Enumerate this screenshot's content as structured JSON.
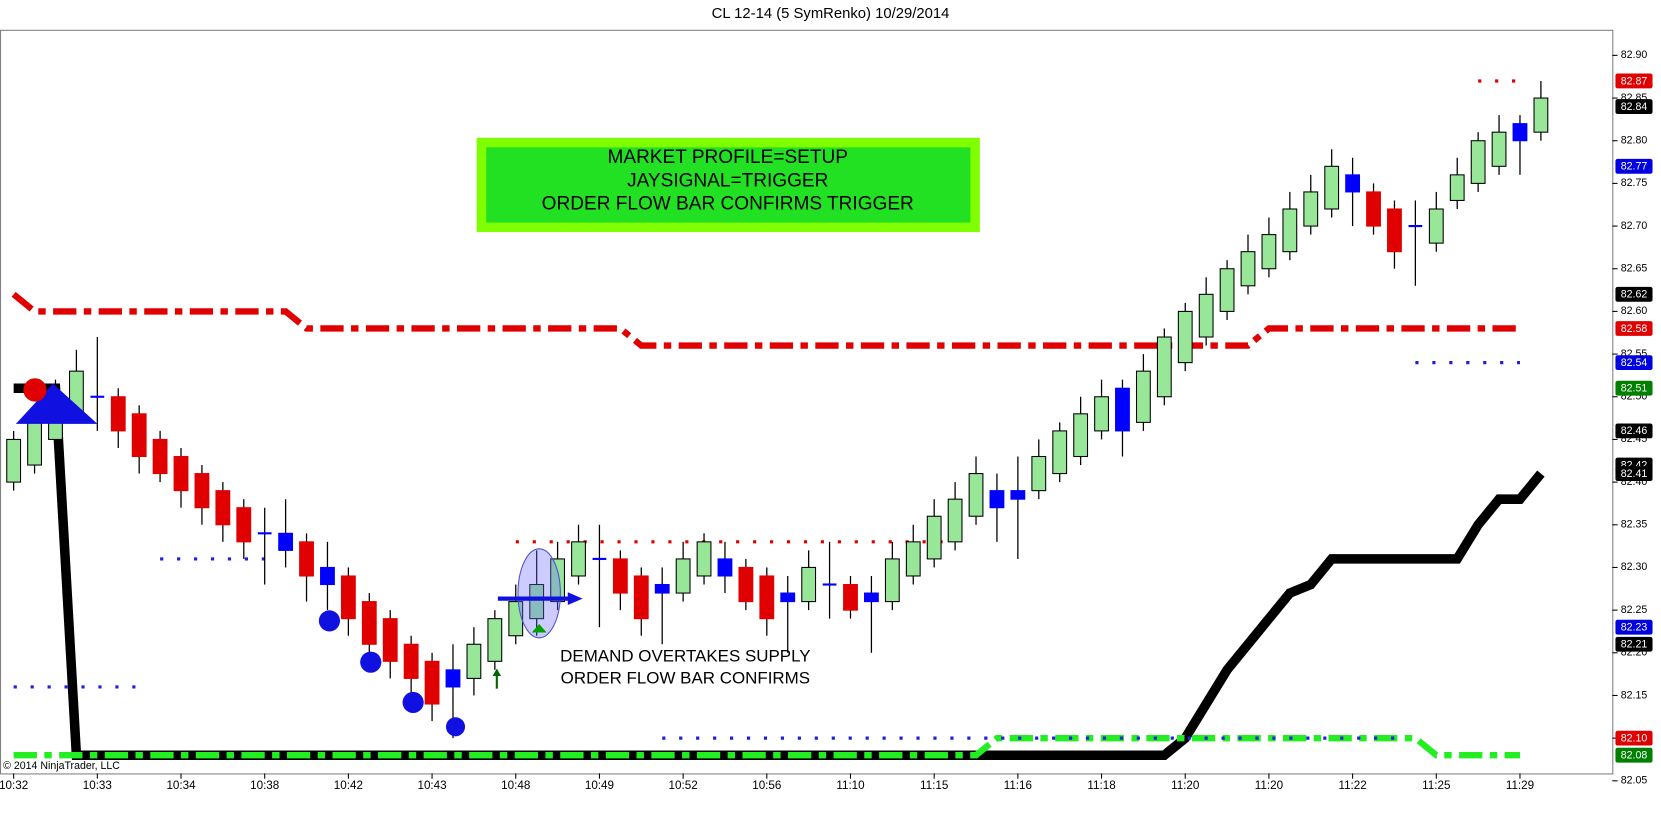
{
  "chart_data": {
    "type": "candlestick",
    "title": "CL 12-14 (5 SymRenko)  10/29/2014",
    "copyright": "© 2014 NinjaTrader, LLC",
    "categories": [
      "10:32",
      null,
      null,
      null,
      "10:33",
      null,
      null,
      null,
      "10:34",
      null,
      null,
      null,
      "10:38",
      null,
      null,
      null,
      "10:42",
      null,
      null,
      null,
      "10:43",
      null,
      null,
      null,
      "10:48",
      null,
      null,
      null,
      "10:49",
      null,
      null,
      null,
      "10:52",
      null,
      null,
      null,
      "10:56",
      null,
      null,
      null,
      "11:10",
      null,
      null,
      null,
      "11:15",
      null,
      null,
      null,
      "11:16",
      null,
      null,
      null,
      "11:18",
      null,
      null,
      null,
      "11:20",
      null,
      null,
      null,
      "11:20",
      null,
      null,
      null,
      "11:22",
      null,
      null,
      null,
      "11:25",
      null,
      null,
      null,
      "11:29",
      null
    ],
    "open": [
      82.4,
      82.42,
      82.45,
      82.48,
      82.5,
      82.5,
      82.48,
      82.45,
      82.43,
      82.41,
      82.39,
      82.37,
      82.34,
      82.34,
      82.33,
      82.3,
      82.29,
      82.26,
      82.24,
      82.21,
      82.19,
      82.16,
      82.17,
      82.19,
      82.22,
      82.24,
      82.26,
      82.29,
      82.31,
      82.31,
      82.29,
      82.27,
      82.27,
      82.29,
      82.31,
      82.3,
      82.29,
      82.26,
      82.26,
      82.28,
      82.28,
      82.26,
      82.26,
      82.29,
      82.31,
      82.33,
      82.36,
      82.37,
      82.38,
      82.39,
      82.41,
      82.43,
      82.46,
      82.46,
      82.47,
      82.5,
      82.54,
      82.57,
      82.6,
      82.63,
      82.65,
      82.67,
      82.7,
      82.72,
      82.76,
      82.74,
      82.72,
      82.7,
      82.68,
      82.73,
      82.75,
      82.77,
      82.8,
      82.81
    ],
    "high": [
      82.46,
      82.49,
      82.52,
      82.555,
      82.57,
      82.51,
      82.49,
      82.46,
      82.44,
      82.42,
      82.4,
      82.38,
      82.37,
      82.38,
      82.34,
      82.33,
      82.3,
      82.27,
      82.25,
      82.22,
      82.2,
      82.21,
      82.23,
      82.25,
      82.28,
      82.32,
      82.33,
      82.35,
      82.35,
      82.32,
      82.3,
      82.3,
      82.33,
      82.34,
      82.33,
      82.31,
      82.3,
      82.29,
      82.32,
      82.33,
      82.29,
      82.29,
      82.33,
      82.35,
      82.38,
      82.4,
      82.43,
      82.41,
      82.43,
      82.45,
      82.47,
      82.5,
      82.52,
      82.52,
      82.55,
      82.58,
      82.61,
      82.64,
      82.66,
      82.69,
      82.71,
      82.74,
      82.76,
      82.79,
      82.78,
      82.75,
      82.73,
      82.73,
      82.74,
      82.78,
      82.81,
      82.83,
      82.83,
      82.87
    ],
    "low": [
      82.39,
      82.41,
      82.44,
      82.47,
      82.46,
      82.44,
      82.41,
      82.4,
      82.37,
      82.35,
      82.33,
      82.31,
      82.28,
      82.3,
      82.26,
      82.25,
      82.22,
      82.2,
      82.17,
      82.15,
      82.12,
      82.1,
      82.15,
      82.18,
      82.21,
      82.22,
      82.25,
      82.28,
      82.23,
      82.25,
      82.22,
      82.21,
      82.26,
      82.28,
      82.27,
      82.25,
      82.22,
      82.2,
      82.25,
      82.24,
      82.24,
      82.2,
      82.25,
      82.28,
      82.3,
      82.32,
      82.35,
      82.33,
      82.31,
      82.38,
      82.4,
      82.42,
      82.45,
      82.43,
      82.46,
      82.49,
      82.53,
      82.56,
      82.59,
      82.62,
      82.64,
      82.66,
      82.69,
      82.71,
      82.7,
      82.69,
      82.65,
      82.63,
      82.67,
      82.72,
      82.74,
      82.76,
      82.76,
      82.8
    ],
    "close": [
      82.45,
      82.47,
      82.5,
      82.53,
      82.5,
      82.46,
      82.43,
      82.41,
      82.39,
      82.37,
      82.35,
      82.33,
      82.34,
      82.32,
      82.29,
      82.28,
      82.24,
      82.21,
      82.19,
      82.17,
      82.14,
      82.18,
      82.21,
      82.24,
      82.26,
      82.28,
      82.31,
      82.33,
      82.31,
      82.27,
      82.24,
      82.28,
      82.31,
      82.33,
      82.29,
      82.26,
      82.24,
      82.27,
      82.3,
      82.28,
      82.25,
      82.27,
      82.31,
      82.33,
      82.36,
      82.38,
      82.41,
      82.39,
      82.39,
      82.43,
      82.46,
      82.48,
      82.5,
      82.51,
      82.53,
      82.57,
      82.6,
      82.62,
      82.65,
      82.67,
      82.69,
      82.72,
      82.74,
      82.77,
      82.74,
      82.7,
      82.67,
      82.7,
      82.72,
      82.76,
      82.8,
      82.81,
      82.82,
      82.85
    ],
    "order_flow_bars": [
      4,
      12,
      13,
      15,
      21,
      28,
      31,
      34,
      37,
      39,
      41,
      47,
      48,
      53,
      64,
      67,
      72
    ],
    "colors": {
      "up": "#98e698",
      "down": "#e00000",
      "order_flow": "#0000ff"
    },
    "ylim": [
      82.05,
      82.93
    ],
    "yticks": [
      82.05,
      {
        "value": 82.1,
        "label": "82.10"
      },
      82.15,
      {
        "value": 82.2,
        "label": "82.20"
      },
      82.25,
      {
        "value": 82.3,
        "label": "82.30"
      },
      82.35,
      {
        "value": 82.4,
        "label": "82.40"
      },
      82.45,
      {
        "value": 82.5,
        "label": "82.50"
      },
      82.55,
      {
        "value": 82.6,
        "label": "82.60"
      },
      82.65,
      {
        "value": 82.7,
        "label": "82.70"
      },
      82.75,
      {
        "value": 82.8,
        "label": "82.80"
      },
      82.85,
      {
        "value": 82.9,
        "label": "82.90"
      }
    ],
    "lines": [
      {
        "color": "#e00000",
        "style": "dashdot",
        "values": [
          82.62,
          82.6,
          82.6,
          82.6,
          82.6,
          82.6,
          82.6,
          82.6,
          82.6,
          82.6,
          82.6,
          82.6,
          82.6,
          82.6,
          82.58,
          82.58,
          82.58,
          82.58,
          82.58,
          82.58,
          82.58,
          82.58,
          82.58,
          82.58,
          82.58,
          82.58,
          82.58,
          82.58,
          82.58,
          82.58,
          82.56,
          82.56,
          82.56,
          82.56,
          82.56,
          82.56,
          82.56,
          82.56,
          82.56,
          82.56,
          82.56,
          82.56,
          82.56,
          82.56,
          82.56,
          82.56,
          82.56,
          82.56,
          82.56,
          82.56,
          82.56,
          82.56,
          82.56,
          82.56,
          82.56,
          82.56,
          82.56,
          82.56,
          82.56,
          82.56,
          82.58,
          82.58,
          82.58,
          82.58,
          82.58,
          82.58,
          82.58,
          82.58,
          82.58,
          82.58,
          82.58,
          82.58,
          82.58,
          null
        ]
      },
      {
        "color": "#000000",
        "style": "solid",
        "values": [
          82.51,
          82.51,
          82.51,
          82.08,
          82.08,
          82.08,
          82.08,
          82.08,
          82.08,
          82.08,
          82.08,
          82.08,
          82.08,
          82.08,
          82.08,
          82.08,
          82.08,
          82.08,
          82.08,
          82.08,
          82.08,
          82.08,
          82.08,
          82.08,
          82.08,
          82.08,
          82.08,
          82.08,
          82.08,
          82.08,
          82.08,
          82.08,
          82.08,
          82.08,
          82.08,
          82.08,
          82.08,
          82.08,
          82.08,
          82.08,
          82.08,
          82.08,
          82.08,
          82.08,
          82.08,
          82.08,
          82.08,
          82.08,
          82.08,
          82.08,
          82.08,
          82.08,
          82.08,
          82.08,
          82.08,
          82.08,
          82.1,
          82.14,
          82.18,
          82.21,
          82.24,
          82.27,
          82.28,
          82.31,
          82.31,
          82.31,
          82.31,
          82.31,
          82.31,
          82.31,
          82.35,
          82.38,
          82.38,
          82.41
        ]
      },
      {
        "color": "#22ee22",
        "style": "dashdot",
        "values": [
          82.08,
          82.08,
          82.08,
          82.08,
          82.08,
          82.08,
          82.08,
          82.08,
          82.08,
          82.08,
          82.08,
          82.08,
          82.08,
          82.08,
          82.08,
          82.08,
          82.08,
          82.08,
          82.08,
          82.08,
          82.08,
          82.08,
          82.08,
          82.08,
          82.08,
          82.08,
          82.08,
          82.08,
          82.08,
          82.08,
          82.08,
          82.08,
          82.08,
          82.08,
          82.08,
          82.08,
          82.08,
          82.08,
          82.08,
          82.08,
          82.08,
          82.08,
          82.08,
          82.08,
          82.08,
          82.08,
          82.08,
          82.1,
          82.1,
          82.1,
          82.1,
          82.1,
          82.1,
          82.1,
          82.1,
          82.1,
          82.1,
          82.1,
          82.1,
          82.1,
          82.1,
          82.1,
          82.1,
          82.1,
          82.1,
          82.1,
          82.1,
          82.1,
          82.08,
          82.08,
          82.08,
          82.08,
          82.08,
          null
        ]
      },
      {
        "color": "#1f1fe0",
        "style": "dotted",
        "values": [
          82.16,
          82.16,
          82.16,
          82.16,
          82.16,
          82.16,
          82.16,
          null,
          null,
          null,
          null,
          null,
          null,
          null,
          null,
          null,
          null,
          null,
          null,
          null,
          null,
          null,
          null,
          null,
          null,
          null,
          null,
          null,
          null,
          null,
          null,
          null,
          null,
          null,
          null,
          null,
          null,
          null,
          null,
          null,
          null,
          null,
          null,
          null,
          null,
          null,
          null,
          null,
          null,
          null,
          null,
          null,
          null,
          null,
          null,
          null,
          null,
          null,
          null,
          null,
          null,
          null,
          null,
          null,
          null,
          null,
          null,
          null,
          null,
          null,
          null,
          null,
          null,
          null
        ]
      },
      {
        "color": "#1f1fe0",
        "style": "dotted",
        "values": [
          null,
          null,
          null,
          null,
          null,
          null,
          null,
          82.31,
          82.31,
          82.31,
          82.31,
          82.31,
          82.31,
          null,
          null,
          null,
          null,
          null,
          null,
          null,
          null,
          null,
          null,
          null,
          null,
          null,
          null,
          null,
          null,
          null,
          null,
          null,
          null,
          null,
          null,
          null,
          null,
          null,
          null,
          null,
          null,
          null,
          null,
          null,
          null,
          null,
          null,
          null,
          null,
          null,
          null,
          null,
          null,
          null,
          null,
          null,
          null,
          null,
          null,
          null,
          null,
          null,
          null,
          null,
          null,
          null,
          null,
          null,
          null,
          null,
          null,
          null,
          null,
          null
        ]
      },
      {
        "color": "#e00000",
        "style": "dotted",
        "values": [
          null,
          null,
          null,
          null,
          null,
          null,
          null,
          null,
          null,
          null,
          null,
          null,
          null,
          null,
          null,
          null,
          null,
          null,
          null,
          null,
          null,
          null,
          null,
          null,
          82.33,
          82.33,
          82.33,
          82.33,
          82.33,
          82.33,
          82.33,
          82.33,
          82.33,
          82.33,
          82.33,
          82.33,
          82.33,
          82.33,
          82.33,
          82.33,
          82.33,
          82.33,
          82.33,
          82.33,
          82.33,
          82.33,
          null,
          null,
          null,
          null,
          null,
          null,
          null,
          null,
          null,
          null,
          null,
          null,
          null,
          null,
          null,
          null,
          null,
          null,
          null,
          null,
          null,
          null,
          null,
          null,
          null,
          null,
          null,
          null
        ]
      },
      {
        "color": "#1f1fe0",
        "style": "dotted",
        "values": [
          null,
          null,
          null,
          null,
          null,
          null,
          null,
          null,
          null,
          null,
          null,
          null,
          null,
          null,
          null,
          null,
          null,
          null,
          null,
          null,
          null,
          null,
          null,
          null,
          null,
          null,
          null,
          null,
          null,
          null,
          null,
          82.1,
          82.1,
          82.1,
          82.1,
          82.1,
          82.1,
          82.1,
          82.1,
          82.1,
          82.1,
          82.1,
          82.1,
          82.1,
          82.1,
          82.1,
          82.1,
          82.1,
          82.1,
          82.1,
          82.1,
          82.1,
          82.1,
          82.1,
          82.1,
          82.1,
          82.1,
          82.1,
          82.1,
          82.1,
          82.1,
          82.1,
          82.1,
          82.1,
          82.1,
          82.1,
          82.1,
          null,
          null,
          null,
          null,
          null,
          null,
          null
        ]
      },
      {
        "color": "#1f1fe0",
        "style": "dotted",
        "values": [
          null,
          null,
          null,
          null,
          null,
          null,
          null,
          null,
          null,
          null,
          null,
          null,
          null,
          null,
          null,
          null,
          null,
          null,
          null,
          null,
          null,
          null,
          null,
          null,
          null,
          null,
          null,
          null,
          null,
          null,
          null,
          null,
          null,
          null,
          null,
          null,
          null,
          null,
          null,
          null,
          null,
          null,
          null,
          null,
          null,
          null,
          null,
          null,
          null,
          null,
          null,
          null,
          null,
          null,
          null,
          null,
          null,
          null,
          null,
          null,
          null,
          null,
          null,
          null,
          null,
          null,
          null,
          82.54,
          82.54,
          82.54,
          82.54,
          82.54,
          82.54,
          null
        ]
      },
      {
        "color": "#e00000",
        "style": "dotted",
        "values": [
          null,
          null,
          null,
          null,
          null,
          null,
          null,
          null,
          null,
          null,
          null,
          null,
          null,
          null,
          null,
          null,
          null,
          null,
          null,
          null,
          null,
          null,
          null,
          null,
          null,
          null,
          null,
          null,
          null,
          null,
          null,
          null,
          null,
          null,
          null,
          null,
          null,
          null,
          null,
          null,
          null,
          null,
          null,
          null,
          null,
          null,
          null,
          null,
          null,
          null,
          null,
          null,
          null,
          null,
          null,
          null,
          null,
          null,
          null,
          null,
          null,
          null,
          null,
          null,
          null,
          null,
          null,
          null,
          null,
          null,
          82.87,
          82.87,
          82.87,
          null
        ]
      }
    ],
    "price_markers": [
      {
        "value": 82.87,
        "color": "#e00000"
      },
      {
        "value": 82.84,
        "color": "#000000"
      },
      {
        "value": 82.77,
        "color": "#0000e0"
      },
      {
        "value": 82.62,
        "color": "#000000"
      },
      {
        "value": 82.58,
        "color": "#e00000"
      },
      {
        "value": 82.54,
        "color": "#0000e0"
      },
      {
        "value": 82.51,
        "color": "#008000"
      },
      {
        "value": 82.46,
        "color": "#000000"
      },
      {
        "value": 82.42,
        "color": "#000000"
      },
      {
        "value": 82.41,
        "color": "#000000"
      },
      {
        "value": 82.23,
        "color": "#0000e0"
      },
      {
        "value": 82.21,
        "color": "#000000"
      },
      {
        "value": 82.1,
        "label": "82.10",
        "color": "#e00000"
      },
      {
        "value": 82.08,
        "color": "#008000"
      }
    ],
    "annotations": {
      "setup_box": [
        "MARKET PROFILE=SETUP",
        "JAYSIGNAL=TRIGGER",
        "ORDER FLOW BAR CONFIRMS TRIGGER"
      ],
      "demand_note": [
        "DEMAND OVERTAKES SUPPLY",
        "ORDER FLOW BAR CONFIRMS"
      ]
    }
  }
}
